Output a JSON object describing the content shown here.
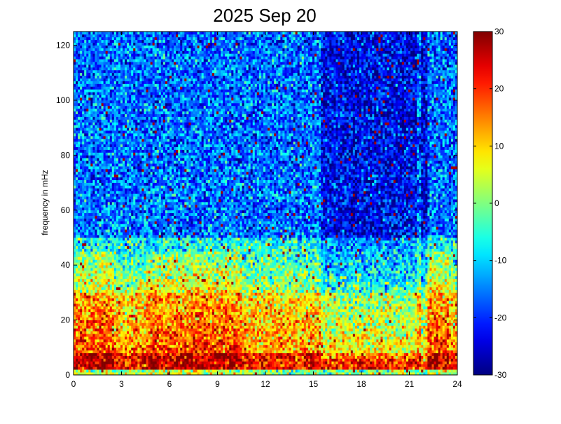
{
  "chart_data": {
    "type": "heatmap",
    "title": "2025 Sep 20",
    "xlabel": "",
    "ylabel": "frequency in mHz",
    "xlim": [
      0,
      24
    ],
    "ylim": [
      0,
      125
    ],
    "x_ticks": [
      0,
      3,
      6,
      9,
      12,
      15,
      18,
      21,
      24
    ],
    "y_ticks": [
      0,
      20,
      40,
      60,
      80,
      100,
      120
    ],
    "colorbar": {
      "colormap": "jet",
      "range": [
        -30,
        30
      ],
      "ticks": [
        -30,
        -20,
        -10,
        0,
        10,
        20,
        30
      ]
    },
    "grid": false,
    "x_bins": 180,
    "y_bins": 125,
    "intensity_profile": {
      "description_note": "",
      "low_freq_band_mHz": [
        0,
        8
      ],
      "low_freq_level": 22,
      "mid_freq_band_mHz": [
        8,
        30
      ],
      "mid_freq_level": 8,
      "transition_band_mHz": [
        30,
        50
      ],
      "transition_level": -8,
      "high_freq_level": -16,
      "bright_intervals_hours": [
        [
          0,
          2.5
        ],
        [
          4.5,
          10.5
        ],
        [
          22,
          23.5
        ]
      ],
      "quiet_interval_hours": [
        15.5,
        21.5
      ]
    },
    "colors": {
      "frame": "#000000",
      "background": "#ffffff"
    }
  }
}
